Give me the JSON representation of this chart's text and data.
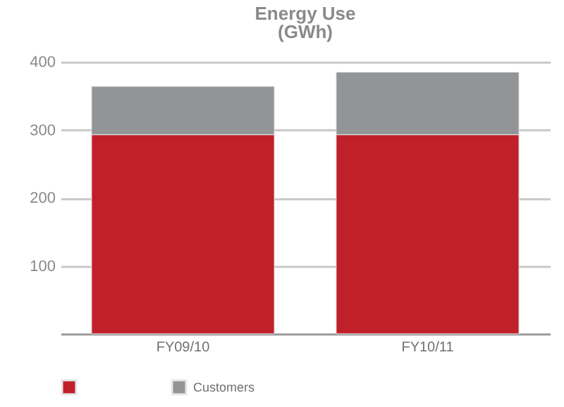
{
  "chart_data": {
    "type": "bar",
    "title": "Energy Use",
    "subtitle": "(GWh)",
    "categories": [
      "FY09/10",
      "FY10/11"
    ],
    "series": [
      {
        "color": "#c0202a",
        "values": [
          293,
          293
        ]
      },
      {
        "name": "Customers",
        "color": "#939496",
        "values": [
          71,
          92
        ]
      }
    ],
    "stacked": true,
    "ylim": [
      0,
      400
    ],
    "yticks": [
      100,
      200,
      300,
      400
    ],
    "grid": "y",
    "legend": "bottom"
  }
}
